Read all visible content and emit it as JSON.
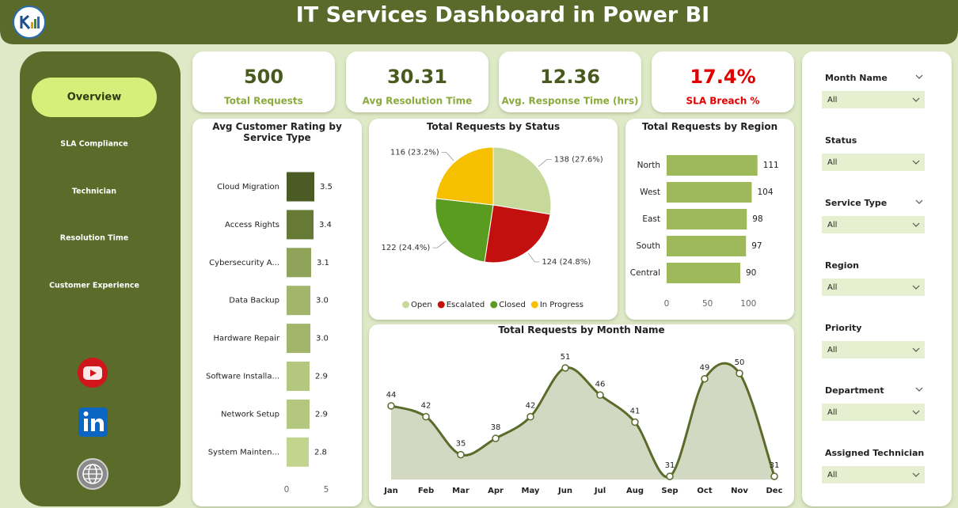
{
  "header": {
    "title": "IT Services Dashboard  in Power BI"
  },
  "nav": [
    "Overview",
    "SLA Compliance",
    "Technician",
    "Resolution Time",
    "Customer Experience"
  ],
  "kpis": [
    {
      "value": "500",
      "label": "Total Requests"
    },
    {
      "value": "30.31",
      "label": "Avg Resolution Time"
    },
    {
      "value": "12.36",
      "label": "Avg. Response Time (hrs)"
    },
    {
      "value": "17.4%",
      "label": "SLA Breach %"
    }
  ],
  "slicers": [
    {
      "label": "Month Name",
      "value": "All"
    },
    {
      "label": "Status",
      "value": "All"
    },
    {
      "label": "Service Type",
      "value": "All"
    },
    {
      "label": "Region",
      "value": "All"
    },
    {
      "label": "Priority",
      "value": "All"
    },
    {
      "label": "Department",
      "value": "All"
    },
    {
      "label": "Assigned Technician",
      "value": "All"
    }
  ],
  "chart_data": [
    {
      "type": "hbar",
      "title": "Avg Customer Rating by Service Type",
      "categories": [
        "Cloud Migration",
        "Access Rights",
        "Cybersecurity A...",
        "Data Backup",
        "Hardware Repair",
        "Software Installa...",
        "Network Setup",
        "System Mainten..."
      ],
      "values": [
        3.5,
        3.4,
        3.1,
        3.0,
        3.0,
        2.9,
        2.9,
        2.8
      ],
      "value_labels": [
        "3.5",
        "3.4",
        "3.1",
        "3.0",
        "3.0",
        "2.9",
        "2.9",
        "2.8"
      ],
      "colors": [
        "#4b5b24",
        "#667a35",
        "#8fa35a",
        "#a2b56b",
        "#a2b56b",
        "#b4c77f",
        "#b4c77f",
        "#c3d48f"
      ],
      "xlim": [
        0,
        5
      ],
      "xticks": [
        0,
        5
      ]
    },
    {
      "type": "pie",
      "title": "Total Requests by Status",
      "categories": [
        "Open",
        "Escalated",
        "Closed",
        "In Progress"
      ],
      "values": [
        138,
        124,
        122,
        116
      ],
      "value_labels": [
        "138 (27.6%)",
        "124 (24.8%)",
        "122 (24.4%)",
        "116 (23.2%)"
      ],
      "colors": [
        "#c6d99b",
        "#c40f0f",
        "#5a9c1f",
        "#f6bf00"
      ],
      "legend": "bottom"
    },
    {
      "type": "hbar",
      "title": "Total Requests by Region",
      "categories": [
        "North",
        "West",
        "East",
        "South",
        "Central"
      ],
      "values": [
        111,
        104,
        98,
        97,
        90
      ],
      "color": "#9db959",
      "xlim": [
        0,
        120
      ],
      "xticks": [
        0,
        50,
        100
      ]
    },
    {
      "type": "area",
      "title": "Total Requests by Month Name",
      "categories": [
        "Jan",
        "Feb",
        "Mar",
        "Apr",
        "May",
        "Jun",
        "Jul",
        "Aug",
        "Sep",
        "Oct",
        "Nov",
        "Dec"
      ],
      "values": [
        44,
        42,
        35,
        38,
        42,
        51,
        46,
        41,
        31,
        49,
        50,
        31
      ],
      "color": "#5b6b2a",
      "fill": "#d3d8c3",
      "smooth": true
    }
  ]
}
